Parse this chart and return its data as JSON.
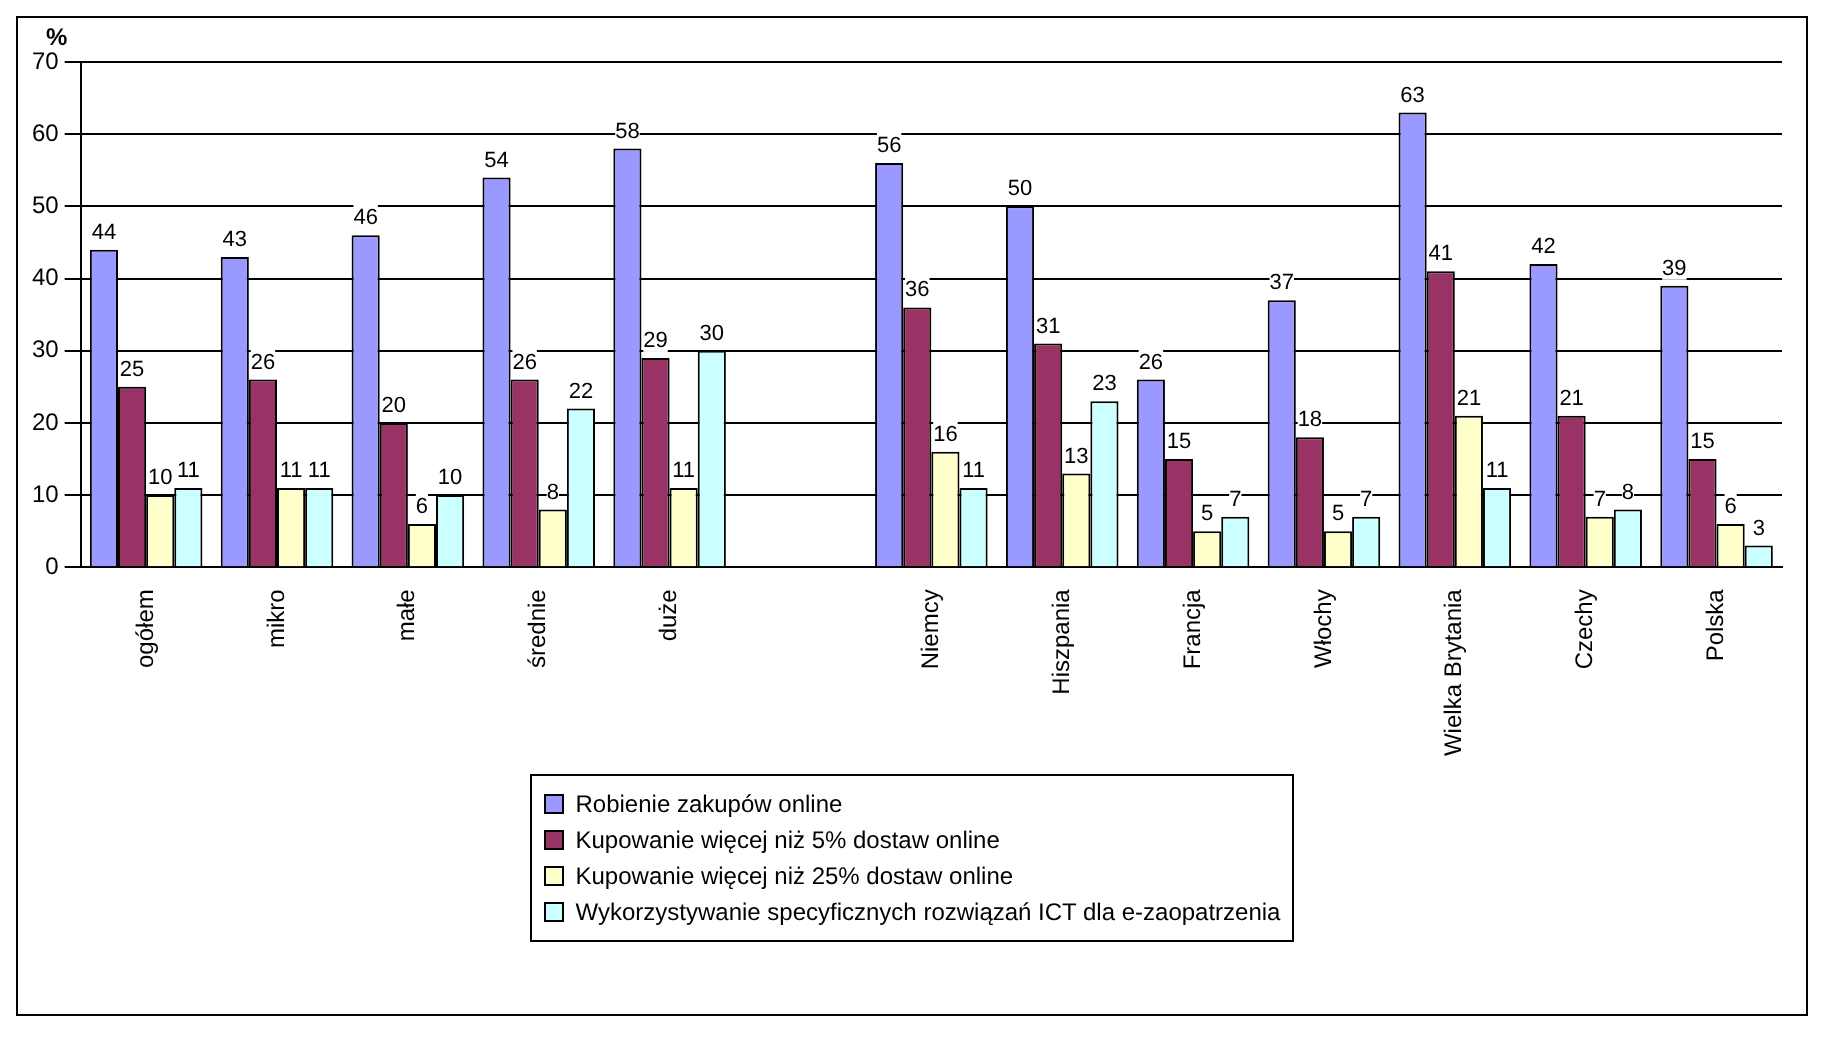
{
  "chart_data": {
    "type": "bar",
    "ylabel": "%",
    "categories": [
      "ogółem",
      "mikro",
      "małe",
      "średnie",
      "duże",
      null,
      "Niemcy",
      "Hiszpania",
      "Francja",
      "Włochy",
      "Wielka Brytania",
      "Czechy",
      "Polska"
    ],
    "series": [
      {
        "name": "Robienie zakupów online",
        "color": "#9999ff",
        "values": [
          44,
          43,
          46,
          54,
          58,
          null,
          56,
          50,
          26,
          37,
          63,
          42,
          39
        ]
      },
      {
        "name": "Kupowanie więcej niż 5% dostaw online",
        "color": "#993366",
        "values": [
          25,
          26,
          20,
          26,
          29,
          null,
          36,
          31,
          15,
          18,
          41,
          21,
          15
        ]
      },
      {
        "name": "Kupowanie więcej niż 25% dostaw online",
        "color": "#ffffcc",
        "values": [
          10,
          11,
          6,
          8,
          11,
          null,
          16,
          13,
          5,
          5,
          21,
          7,
          6
        ]
      },
      {
        "name": "Wykorzystywanie specyficznych rozwiązań ICT dla e-zaopatrzenia",
        "color": "#ccffff",
        "values": [
          11,
          11,
          10,
          22,
          30,
          null,
          11,
          23,
          7,
          7,
          11,
          8,
          3
        ]
      }
    ],
    "ylim": [
      0,
      70
    ],
    "yticks": [
      0,
      10,
      20,
      30,
      40,
      50,
      60,
      70
    ],
    "grid": "y",
    "legend": "bottom",
    "data_labels": true
  }
}
